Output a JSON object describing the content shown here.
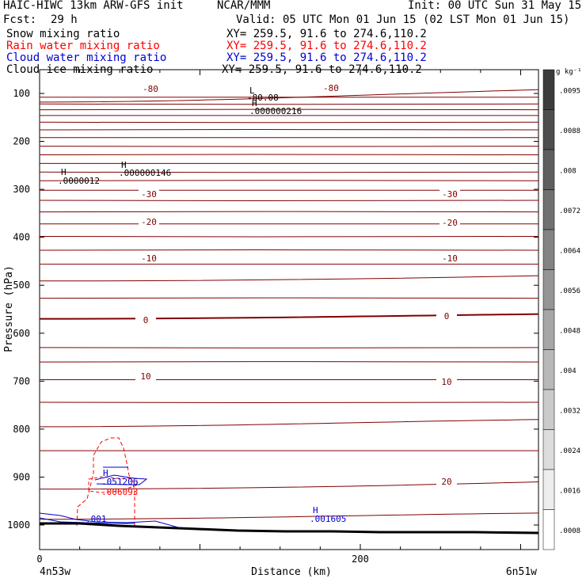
{
  "header": {
    "model": "HAIC-HIWC 13km ARW-GFS init",
    "org": "NCAR/MMM",
    "init": "Init: 00 UTC Sun 31 May 15",
    "fcst_label": "Fcst:",
    "fcst_value": "29 h",
    "valid": "Valid: 05 UTC Mon 01 Jun 15 (02 LST Mon 01 Jun 15)",
    "fields": [
      {
        "label": "Snow mixing ratio",
        "xy": "XY= 259.5, 91.6 to 274.6,110.2",
        "color": "#000000"
      },
      {
        "label": "Rain water mixing ratio",
        "xy": "XY= 259.5, 91.6 to 274.6,110.2",
        "color": "#ff0000"
      },
      {
        "label": "Cloud water mixing ratio",
        "xy": "XY= 259.5, 91.6 to 274.6,110.2",
        "color": "#0000cc"
      },
      {
        "label": "Cloud ice mixing ratio",
        "xy": "XY= 259.5, 91.6 to 274.6,110.2",
        "color": "#000000"
      }
    ]
  },
  "chart_data": {
    "type": "contour",
    "xlabel": "Distance (km)",
    "ylabel": "Pressure (hPa)",
    "xlim": [
      0,
      310
    ],
    "ylim": [
      1050,
      50
    ],
    "x_ticks": [
      0,
      200
    ],
    "y_ticks": [
      100,
      200,
      300,
      400,
      500,
      600,
      700,
      800,
      900,
      1000
    ],
    "left_endpoint": "4n53w",
    "right_endpoint": "6n51w",
    "temperature_contour_labels": [
      "-80",
      "-80",
      "-30",
      "-30",
      "-20",
      "-20",
      "-10",
      "-10",
      "0",
      "0",
      "10",
      "10",
      "20"
    ],
    "temperature_contours": [
      {
        "label": "-80",
        "p_left": 118,
        "p_right": 92
      },
      {
        "p_left": 108,
        "p_right": 108
      },
      {
        "p_left": 122,
        "p_right": 122
      },
      {
        "p_left": 134,
        "p_right": 134
      },
      {
        "p_left": 146,
        "p_right": 146
      },
      {
        "p_left": 160,
        "p_right": 160
      },
      {
        "p_left": 176,
        "p_right": 176
      },
      {
        "p_left": 192,
        "p_right": 192
      },
      {
        "p_left": 210,
        "p_right": 210
      },
      {
        "p_left": 228,
        "p_right": 228
      },
      {
        "p_left": 246,
        "p_right": 246
      },
      {
        "p_left": 264,
        "p_right": 264
      },
      {
        "label": "-30",
        "p_left": 282,
        "p_right": 282
      },
      {
        "p_left": 302,
        "p_right": 302
      },
      {
        "p_left": 323,
        "p_right": 323
      },
      {
        "label": "-20",
        "p_left": 347,
        "p_right": 347
      },
      {
        "p_left": 372,
        "p_right": 372
      },
      {
        "p_left": 398,
        "p_right": 398
      },
      {
        "label": "-10",
        "p_left": 427,
        "p_right": 427
      },
      {
        "p_left": 456,
        "p_right": 456
      },
      {
        "p_left": 491,
        "p_right": 480
      },
      {
        "p_left": 527,
        "p_right": 527
      },
      {
        "label": "0",
        "p_left": 570,
        "p_right": 560
      },
      {
        "p_left": 630,
        "p_right": 630
      },
      {
        "label": "10",
        "p_left": 660,
        "p_right": 660
      },
      {
        "p_left": 697,
        "p_right": 697
      },
      {
        "p_left": 744,
        "p_right": 744
      },
      {
        "p_left": 795,
        "p_right": 780
      },
      {
        "p_left": 845,
        "p_right": 845
      },
      {
        "label": "20",
        "p_left": 925,
        "p_right": 910
      },
      {
        "p_left": 988,
        "p_right": 975
      }
    ],
    "annotations": [
      {
        "text": "L",
        "color": "#000000"
      },
      {
        "text": "-80.08",
        "color": "#000000"
      },
      {
        "text": "H",
        "color": "#000000"
      },
      {
        "text": ".000000216",
        "color": "#000000"
      },
      {
        "text": "H",
        "color": "#000000"
      },
      {
        "text": ".0000012",
        "color": "#000000"
      },
      {
        "text": "H",
        "color": "#000000"
      },
      {
        "text": ".000000146",
        "color": "#000000"
      },
      {
        "text": "H",
        "color": "#0000cc"
      },
      {
        "text": ".051206",
        "color": "#0000cc"
      },
      {
        "text": ".006093",
        "color": "#ff0000"
      },
      {
        "text": ".001",
        "color": "#0000cc"
      },
      {
        "text": "H",
        "color": "#0000cc"
      },
      {
        "text": ".001605",
        "color": "#0000cc"
      }
    ],
    "colorbar": {
      "unit": "g kg⁻¹",
      "ticks": [
        ".0095",
        ".0088",
        ".008",
        ".0072",
        ".0064",
        ".0056",
        ".0048",
        ".004",
        ".0032",
        ".0024",
        ".0016",
        ".0008"
      ]
    },
    "colors": {
      "temperature": "#800000",
      "rain": "#ff0000",
      "cloud_water": "#0000cc",
      "terrain": "#000000"
    }
  }
}
